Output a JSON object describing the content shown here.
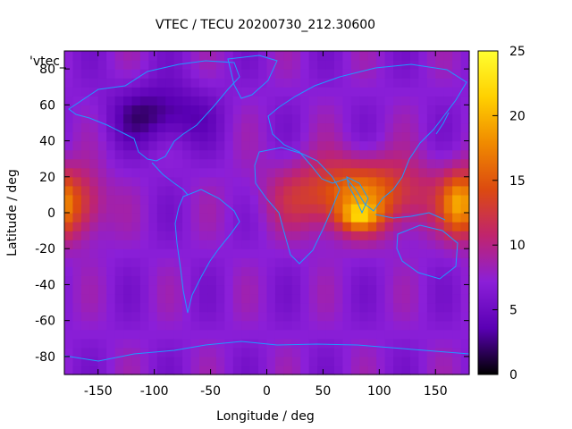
{
  "chart_data": {
    "type": "heatmap",
    "title": "VTEC / TECU 20200730_212.30600",
    "xlabel": "Longitude / deg",
    "ylabel": "Latitude / deg",
    "plot_key": "'vtec_",
    "xlim": [
      -180,
      180
    ],
    "ylim": [
      -90,
      90
    ],
    "xticks": [
      -150,
      -100,
      -50,
      0,
      50,
      100,
      150
    ],
    "yticks": [
      -80,
      -60,
      -40,
      -20,
      0,
      20,
      40,
      60,
      80
    ],
    "colorbar": {
      "range": [
        0,
        25
      ],
      "ticks": [
        0,
        5,
        10,
        15,
        20,
        25
      ],
      "palette": [
        "#000000",
        "#5a00b4",
        "#8b1fd8",
        "#c0246e",
        "#dc4a10",
        "#f08a00",
        "#ffd000",
        "#ffff30"
      ]
    },
    "coastline_color": "#1e9bff",
    "grid": false,
    "legend": "none",
    "grid_resolution": {
      "dlon": 7.5,
      "dlat": 5
    },
    "features": [
      {
        "name": "equatorial anomaly peak",
        "lon": 82,
        "lat": -2,
        "value": 24
      },
      {
        "name": "africa-asia enhancement",
        "lon": 80,
        "lat": 10,
        "value": 17
      },
      {
        "name": "pacific dateline enhancement",
        "lon": -170,
        "lat": 5,
        "value": 14
      },
      {
        "name": "north america minimum",
        "lon": -95,
        "lat": 55,
        "value": 2
      },
      {
        "name": "background",
        "value": 7
      }
    ]
  }
}
